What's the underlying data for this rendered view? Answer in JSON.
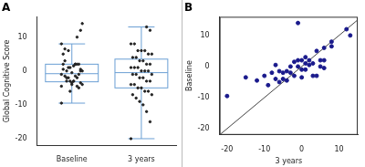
{
  "chart_data": [
    {
      "type": "box",
      "title": "A",
      "categories": [
        "Baseline",
        "3 years"
      ],
      "values": [
        [
          -9.5,
          -3.5,
          -4.5,
          -3,
          -6,
          -2,
          0.5,
          -4,
          -5,
          -1.5,
          -4,
          -2,
          -1.5,
          -4.5,
          0,
          -2,
          1.5,
          -3,
          0,
          2,
          14,
          -1,
          2,
          -3.5,
          1,
          3,
          -1,
          0.5,
          2,
          -3,
          1,
          -3,
          5,
          0,
          2,
          2,
          -0.5,
          6,
          6.5,
          8,
          12,
          10
        ],
        [
          -20,
          -15,
          -12,
          -10,
          -9,
          -8,
          -7,
          -7,
          -6,
          -6,
          -5,
          -5,
          -4,
          -4,
          -3,
          -3,
          -2,
          -2,
          -1,
          -1,
          -1,
          0,
          0,
          0,
          1,
          1,
          1,
          2,
          2,
          3,
          3,
          4,
          4,
          5,
          5,
          6,
          6,
          6,
          8,
          8,
          12,
          13
        ]
      ],
      "boxes": [
        {
          "whislo": -9.5,
          "q1": -3.2,
          "med": -0.8,
          "q3": 2,
          "whishi": 8
        },
        {
          "whislo": -20,
          "q1": -5,
          "med": -0.5,
          "q3": 3.5,
          "whishi": 13
        }
      ],
      "color": "#6a9fd4",
      "y_label": "Global Cognitive Score",
      "ylim": [
        -22,
        16
      ],
      "yticks": [
        -20,
        -10,
        0,
        10
      ],
      "grid": false
    },
    {
      "type": "scatter",
      "title": "B",
      "x_label": "3 years",
      "y_label": "Baseline",
      "series": [
        {
          "type": "scatter",
          "color": "#1a1a8c",
          "x": [
            -20,
            -15,
            -12,
            -10,
            -9,
            -8,
            -7,
            -7,
            -6,
            -6,
            -5,
            -5,
            -4,
            -4,
            -3,
            -3,
            -2,
            -2,
            -1,
            -1,
            -1,
            0,
            0,
            0,
            1,
            1,
            1,
            2,
            2,
            3,
            3,
            4,
            4,
            5,
            5,
            6,
            6,
            6,
            8,
            8,
            12,
            13
          ],
          "values": [
            -9.5,
            -3.5,
            -4.5,
            -3,
            -6,
            -2,
            0.5,
            -4,
            -5,
            -1.5,
            -4,
            -2,
            -1.5,
            -4.5,
            0,
            -2,
            1.5,
            -3,
            0,
            2,
            14,
            -1,
            2,
            -3.5,
            1,
            3,
            -1,
            0.5,
            2,
            -3,
            1,
            -3,
            5,
            0,
            2,
            2,
            -0.5,
            6,
            6.5,
            8,
            12,
            10
          ]
        },
        {
          "type": "line",
          "color": "#444444",
          "x": [
            -22,
            15
          ],
          "values": [
            -22,
            15
          ]
        }
      ],
      "xlim": [
        -22,
        15
      ],
      "xticks": [
        -20,
        -10,
        0,
        10
      ],
      "ylim": [
        -22,
        16
      ],
      "yticks": [
        -20,
        -10,
        0,
        10
      ],
      "grid": false
    }
  ]
}
